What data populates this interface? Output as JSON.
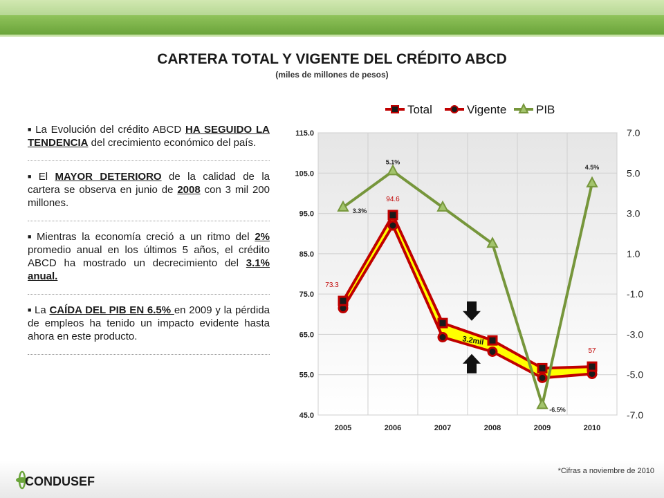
{
  "header": {
    "title": "CARTERA TOTAL Y VIGENTE DEL CRÉDITO ABCD",
    "subtitle": "(miles de millones de pesos)"
  },
  "bullets": [
    {
      "pre": "La Evolución del crédito ABCD ",
      "emph": "HA SEGUIDO LA TENDENCIA",
      "post": " del crecimiento económico del país."
    },
    {
      "pre": "El ",
      "emph": "MAYOR DETERIORO",
      "mid": " de la calidad de la cartera se observa en junio de ",
      "emph2": "2008",
      "post": " con 3 mil 200 millones."
    },
    {
      "pre": "Mientras la economía creció a un ritmo del ",
      "emph": "2%",
      "mid": " promedio anual en los últimos 5 años, el crédito ABCD ha mostrado un decrecimiento del ",
      "emph2": "3.1% anual.",
      "post": ""
    },
    {
      "pre": "La ",
      "emph": "CAÍDA DEL PIB EN 6.5% ",
      "post": "en 2009 y la pérdida de empleos ha tenido un impacto evidente hasta ahora en este producto."
    }
  ],
  "chart_data": {
    "type": "line",
    "categories": [
      "2005",
      "2006",
      "2007",
      "2008",
      "2009",
      "2010"
    ],
    "series": [
      {
        "name": "Total",
        "values": [
          73.3,
          94.6,
          67.8,
          63.5,
          56.6,
          57.0
        ],
        "axis": "left",
        "color": "#c00000"
      },
      {
        "name": "Vigente",
        "values": [
          71.5,
          92.0,
          64.3,
          60.7,
          54.2,
          55.2
        ],
        "axis": "left",
        "color": "#c00000"
      },
      {
        "name": "PIB",
        "values": [
          3.3,
          5.1,
          3.3,
          1.5,
          -6.5,
          4.5
        ],
        "axis": "right",
        "color": "#76963b"
      }
    ],
    "left_axis": {
      "min": 45,
      "max": 115,
      "ticks": [
        "115.0",
        "105.0",
        "95.0",
        "85.0",
        "75.0",
        "65.0",
        "55.0",
        "45.0"
      ]
    },
    "right_axis": {
      "min": -7,
      "max": 7,
      "ticks": [
        "7.0",
        "5.0",
        "3.0",
        "1.0",
        "-1.0",
        "-3.0",
        "-5.0",
        "-7.0"
      ]
    },
    "data_labels": {
      "Total": [
        "73.3",
        "94.6",
        "",
        "",
        "",
        "57"
      ],
      "PIB": [
        "3.3%",
        "5.1%",
        "",
        "",
        "-6.5%",
        "4.5%"
      ]
    },
    "annotation": "3.2mil",
    "grid": true,
    "legend": "top",
    "band_color": "#ffff00"
  },
  "footer": {
    "logo": "CONDUSEF",
    "note": "*Cifras a noviembre de 2010"
  }
}
